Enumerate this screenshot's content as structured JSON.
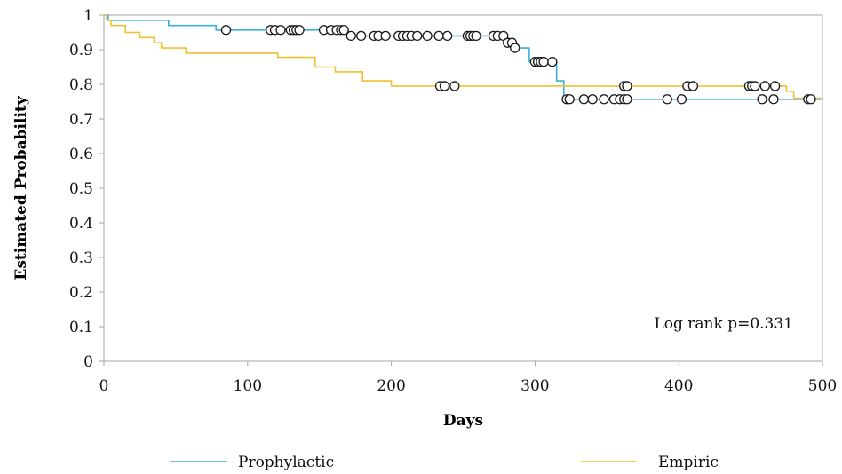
{
  "chart_data": {
    "type": "line",
    "subtype": "kaplan-meier step",
    "xlabel": "Days",
    "ylabel": "Estimated Probability",
    "xlim": [
      0,
      500
    ],
    "ylim": [
      0,
      1
    ],
    "xticks": [
      "0",
      "100",
      "200",
      "300",
      "400",
      "500"
    ],
    "yticks": [
      "0",
      "0.1",
      "0.2",
      "0.3",
      "0.4",
      "0.5",
      "0.6",
      "0.7",
      "0.8",
      "0.9",
      "1"
    ],
    "grid": false,
    "legend_position": "bottom",
    "annotation": "Log rank p=0.331",
    "series": [
      {
        "name": "Prophylactic",
        "color": "#3ab0d8",
        "steps": [
          [
            0,
            1.0
          ],
          [
            3,
            0.985
          ],
          [
            45,
            0.97
          ],
          [
            78,
            0.957
          ],
          [
            170,
            0.94
          ],
          [
            280,
            0.92
          ],
          [
            285,
            0.905
          ],
          [
            290,
            0.905
          ],
          [
            296,
            0.865
          ],
          [
            315,
            0.81
          ],
          [
            320,
            0.757
          ],
          [
            500,
            0.757
          ]
        ],
        "censored_x": [
          85,
          116,
          119,
          123,
          130,
          132,
          134,
          136,
          153,
          158,
          162,
          165,
          167,
          172,
          179,
          188,
          191,
          196,
          205,
          208,
          211,
          214,
          218,
          225,
          233,
          239,
          253,
          255,
          257,
          259,
          271,
          274,
          278,
          281,
          284,
          286,
          300,
          302,
          304,
          306,
          312,
          322,
          324,
          334,
          340,
          348,
          355,
          359,
          362,
          364,
          392,
          402,
          458,
          466,
          490,
          492
        ]
      },
      {
        "name": "Empiric",
        "color": "#f0c030",
        "steps": [
          [
            0,
            1.0
          ],
          [
            2,
            0.985
          ],
          [
            5,
            0.97
          ],
          [
            15,
            0.95
          ],
          [
            25,
            0.935
          ],
          [
            35,
            0.92
          ],
          [
            40,
            0.905
          ],
          [
            57,
            0.89
          ],
          [
            121,
            0.878
          ],
          [
            147,
            0.85
          ],
          [
            161,
            0.836
          ],
          [
            180,
            0.81
          ],
          [
            200,
            0.795
          ],
          [
            465,
            0.795
          ],
          [
            475,
            0.78
          ],
          [
            480,
            0.76
          ],
          [
            500,
            0.76
          ]
        ],
        "censored_x": [
          234,
          237,
          244,
          362,
          364,
          406,
          410,
          449,
          451,
          453,
          460,
          467
        ]
      }
    ]
  }
}
